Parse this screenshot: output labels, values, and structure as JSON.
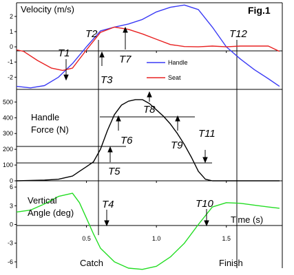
{
  "figure_label": "Fig.1",
  "bottom_labels": {
    "catch": "Catch",
    "finish": "Finish"
  },
  "time_axis": {
    "label": "Time (s)",
    "ticks": [
      0.5,
      1.0,
      1.5
    ],
    "tick_labels": [
      "0.5",
      "1.0",
      "1.5"
    ],
    "range": [
      0,
      1.9
    ]
  },
  "chart_data": [
    {
      "type": "line",
      "title": "Velocity (m/s)",
      "ylabel": "Velocity (m/s)",
      "xlabel": "",
      "ylim": [
        -2.8,
        2.9
      ],
      "yticks": [
        -2,
        -1,
        0,
        1,
        2
      ],
      "ytick_labels": [
        "-2",
        "-1",
        "0",
        "1",
        "2"
      ],
      "legend_position": "right",
      "series": [
        {
          "name": "Handle",
          "color": "#3a3af5",
          "x": [
            0,
            0.1,
            0.2,
            0.3,
            0.4,
            0.5,
            0.6,
            0.7,
            0.8,
            0.9,
            1.0,
            1.1,
            1.2,
            1.3,
            1.4,
            1.5,
            1.6,
            1.7,
            1.8,
            1.88
          ],
          "y": [
            -2.6,
            -2.7,
            -2.55,
            -2.0,
            -1.1,
            0.0,
            1.05,
            1.3,
            1.5,
            1.8,
            2.3,
            2.6,
            2.75,
            2.45,
            1.3,
            0.0,
            -0.8,
            -1.5,
            -2.1,
            -2.6
          ]
        },
        {
          "name": "Seat",
          "color": "#e82020",
          "x": [
            0,
            0.05,
            0.15,
            0.25,
            0.33,
            0.4,
            0.5,
            0.6,
            0.7,
            0.8,
            0.9,
            1.0,
            1.1,
            1.2,
            1.3,
            1.4,
            1.5,
            1.6,
            1.7,
            1.8,
            1.88
          ],
          "y": [
            -0.2,
            -0.3,
            -0.9,
            -1.4,
            -1.55,
            -1.4,
            -0.2,
            0.95,
            1.3,
            1.15,
            0.85,
            0.5,
            0.15,
            0.02,
            0.0,
            0.05,
            0.0,
            0.05,
            0.05,
            0.05,
            -0.3
          ]
        }
      ]
    },
    {
      "type": "line",
      "title": "Handle Force (N)",
      "title_lines": [
        "Handle",
        "Force (N)"
      ],
      "ylabel": "Handle Force (N)",
      "xlabel": "",
      "ylim": [
        0,
        580
      ],
      "yticks": [
        0,
        100,
        200,
        300,
        400,
        500
      ],
      "ytick_labels": [
        "0",
        "100",
        "200",
        "300",
        "400",
        "500"
      ],
      "series": [
        {
          "name": "",
          "color": "#000000",
          "x": [
            0,
            0.1,
            0.2,
            0.3,
            0.4,
            0.45,
            0.5,
            0.55,
            0.6,
            0.65,
            0.7,
            0.75,
            0.8,
            0.85,
            0.9,
            0.95,
            1.0,
            1.05,
            1.1,
            1.15,
            1.2,
            1.25,
            1.3,
            1.35,
            1.4,
            1.5,
            1.6,
            1.7,
            1.8,
            1.88
          ],
          "y": [
            0,
            2,
            5,
            10,
            30,
            60,
            90,
            120,
            200,
            320,
            420,
            480,
            505,
            515,
            515,
            490,
            450,
            410,
            360,
            300,
            230,
            150,
            60,
            10,
            0,
            0,
            0,
            0,
            0,
            0
          ]
        }
      ],
      "reference_lines": [
        100,
        200,
        390
      ]
    },
    {
      "type": "line",
      "title": "Vertical Angle (deg)",
      "title_lines": [
        "Vertical",
        "Angle (deg)"
      ],
      "ylabel": "Vertical Angle (deg)",
      "xlabel": "Time (s)",
      "ylim": [
        -7,
        7
      ],
      "yticks": [
        -6,
        -3,
        0,
        3,
        6
      ],
      "ytick_labels": [
        "-6",
        "-3",
        "0",
        "3",
        "6"
      ],
      "series": [
        {
          "name": "",
          "color": "#22dd22",
          "x": [
            0,
            0.1,
            0.2,
            0.3,
            0.4,
            0.45,
            0.5,
            0.55,
            0.6,
            0.7,
            0.8,
            0.9,
            1.0,
            1.1,
            1.2,
            1.3,
            1.4,
            1.5,
            1.6,
            1.7,
            1.8,
            1.88
          ],
          "y": [
            2.0,
            2.3,
            3.3,
            4.5,
            5.0,
            3.5,
            1.0,
            -1.5,
            -3.8,
            -6.0,
            -7.0,
            -7.2,
            -6.7,
            -5.2,
            -3.0,
            0.0,
            2.8,
            3.5,
            3.4,
            3.1,
            2.8,
            2.6
          ]
        }
      ]
    }
  ],
  "markers": {
    "t1": "T1",
    "t2": "T2",
    "t3": "T3",
    "t4": "T4",
    "t5": "T5",
    "t6": "T6",
    "t7": "T7",
    "t8": "T8",
    "t9": "T9",
    "t10": "T10",
    "t11": "T11",
    "t12": "T12"
  }
}
